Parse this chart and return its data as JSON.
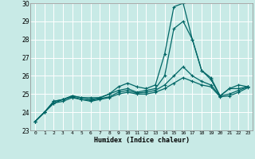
{
  "title": "",
  "xlabel": "Humidex (Indice chaleur)",
  "ylabel": "",
  "xlim": [
    -0.5,
    23.5
  ],
  "ylim": [
    23,
    30
  ],
  "yticks": [
    23,
    24,
    25,
    26,
    27,
    28,
    29,
    30
  ],
  "xticks": [
    0,
    1,
    2,
    3,
    4,
    5,
    6,
    7,
    8,
    9,
    10,
    11,
    12,
    13,
    14,
    15,
    16,
    17,
    18,
    19,
    20,
    21,
    22,
    23
  ],
  "bg_color": "#c8eae6",
  "grid_color": "#ffffff",
  "line_color": "#006666",
  "lines": [
    [
      23.5,
      24.0,
      24.6,
      24.7,
      24.9,
      24.8,
      24.8,
      24.8,
      25.0,
      25.4,
      25.6,
      25.4,
      25.3,
      25.5,
      27.2,
      29.8,
      30.0,
      28.0,
      26.3,
      25.9,
      24.9,
      25.3,
      25.5,
      25.4
    ],
    [
      23.5,
      24.0,
      24.6,
      24.7,
      24.9,
      24.8,
      24.7,
      24.8,
      25.0,
      25.2,
      25.3,
      25.1,
      25.2,
      25.3,
      26.0,
      28.6,
      29.0,
      28.0,
      26.3,
      25.8,
      24.9,
      25.3,
      25.3,
      25.4
    ],
    [
      23.5,
      24.0,
      24.5,
      24.7,
      24.85,
      24.7,
      24.65,
      24.75,
      24.85,
      25.1,
      25.2,
      25.05,
      25.1,
      25.2,
      25.5,
      26.0,
      26.5,
      26.0,
      25.7,
      25.5,
      24.9,
      25.0,
      25.2,
      25.4
    ],
    [
      23.5,
      24.0,
      24.5,
      24.6,
      24.8,
      24.7,
      24.6,
      24.7,
      24.8,
      25.0,
      25.1,
      25.0,
      25.0,
      25.1,
      25.3,
      25.6,
      25.9,
      25.7,
      25.5,
      25.4,
      24.85,
      24.9,
      25.1,
      25.35
    ]
  ]
}
